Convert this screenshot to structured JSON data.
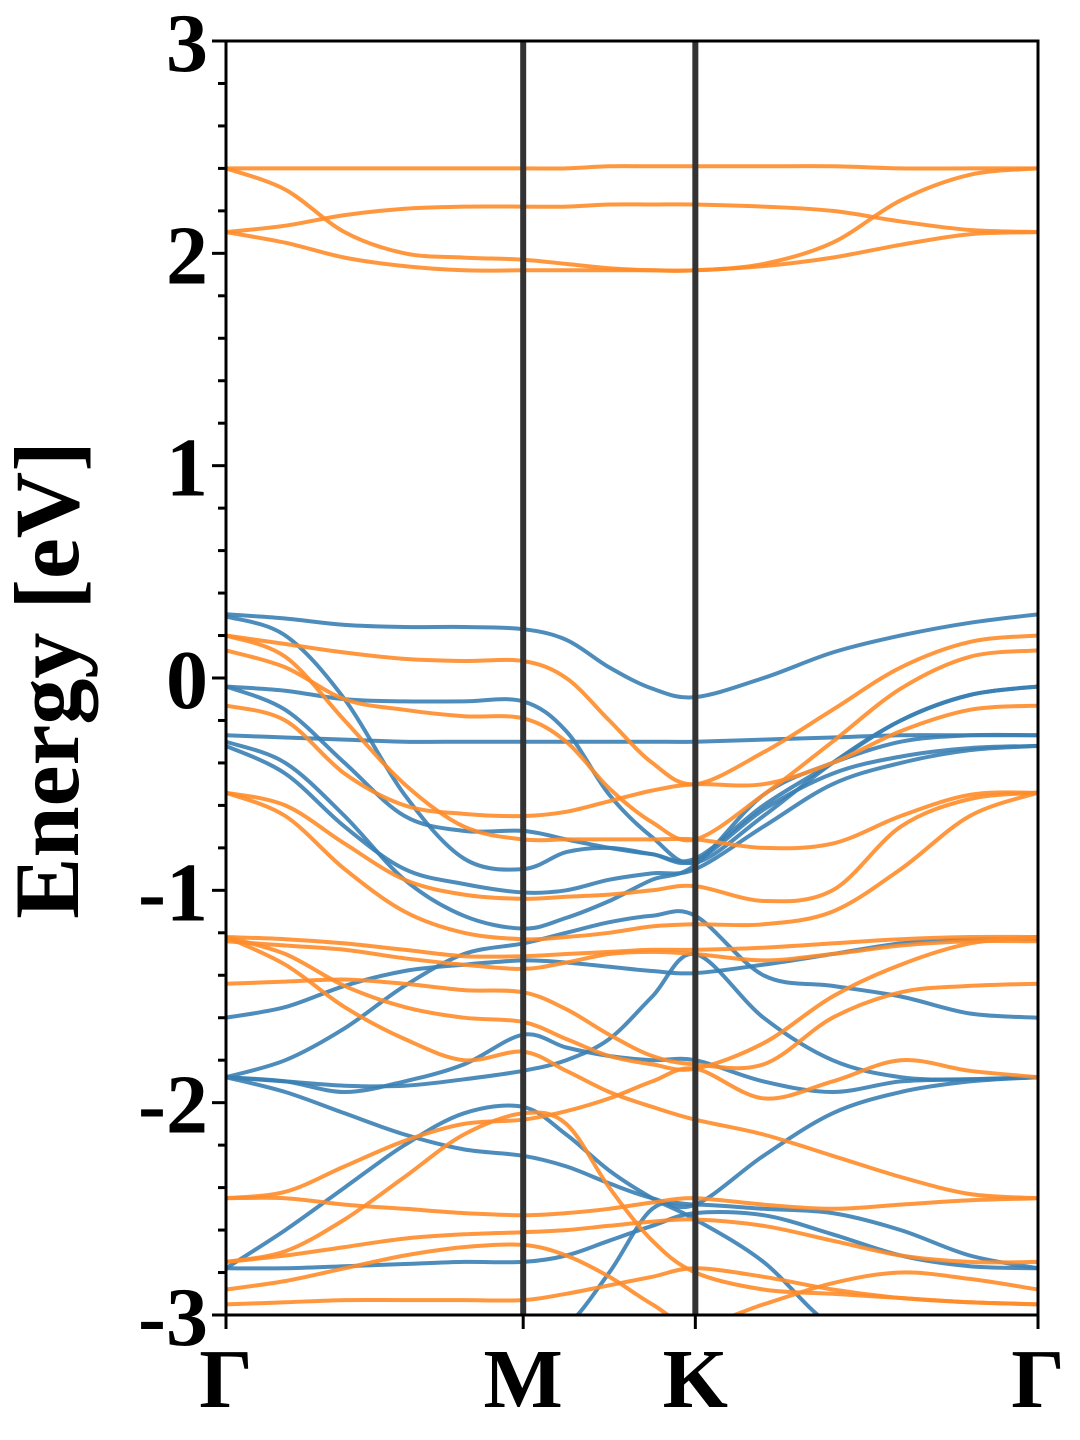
{
  "chart_data": {
    "type": "line",
    "title": "",
    "xlabel": "",
    "ylabel": "Energy [eV]",
    "ylim": [
      -3,
      3
    ],
    "y_ticks": [
      "-3",
      "-2",
      "-1",
      "0",
      "1",
      "2",
      "3"
    ],
    "x_ticks": [
      {
        "label": "Γ",
        "x": 0.0
      },
      {
        "label": "M",
        "x": 0.366
      },
      {
        "label": "K",
        "x": 0.578
      },
      {
        "label": "Γ",
        "x": 1.0
      }
    ],
    "grid": false,
    "legend": "none",
    "colors": {
      "blue_bands": "#3a7fb4",
      "orange_bands": "#ff8c2a",
      "high_symmetry_lines": "#333333"
    },
    "x_samples": [
      0.0,
      0.073,
      0.146,
      0.22,
      0.293,
      0.366,
      0.419,
      0.472,
      0.525,
      0.578,
      0.662,
      0.747,
      0.831,
      0.916,
      1.0
    ],
    "series": [
      {
        "color_key": "blue_bands",
        "values": [
          0.3,
          0.28,
          0.25,
          0.24,
          0.24,
          0.23,
          0.18,
          0.05,
          -0.05,
          -0.09,
          0.0,
          0.12,
          0.2,
          0.26,
          0.3
        ]
      },
      {
        "color_key": "blue_bands",
        "values": [
          -0.04,
          -0.06,
          -0.1,
          -0.11,
          -0.11,
          -0.11,
          -0.25,
          -0.55,
          -0.75,
          -0.87,
          -0.65,
          -0.4,
          -0.2,
          -0.08,
          -0.04
        ]
      },
      {
        "color_key": "blue_bands",
        "values": [
          -0.27,
          -0.28,
          -0.29,
          -0.3,
          -0.3,
          -0.3,
          -0.3,
          -0.3,
          -0.3,
          -0.3,
          -0.29,
          -0.28,
          -0.27,
          -0.27,
          -0.27
        ]
      },
      {
        "color_key": "blue_bands",
        "values": [
          -0.32,
          -0.45,
          -0.7,
          -0.9,
          -0.97,
          -1.01,
          -1.0,
          -0.95,
          -0.92,
          -0.9,
          -0.7,
          -0.5,
          -0.4,
          -0.34,
          -0.32
        ]
      },
      {
        "color_key": "blue_bands",
        "values": [
          0.29,
          0.2,
          -0.1,
          -0.55,
          -0.85,
          -0.9,
          -0.82,
          -0.8,
          -0.83,
          -0.86,
          -0.62,
          -0.45,
          -0.37,
          -0.33,
          -0.32
        ]
      },
      {
        "color_key": "blue_bands",
        "values": [
          -0.04,
          -0.15,
          -0.4,
          -0.65,
          -0.72,
          -0.72,
          -0.76,
          -0.8,
          -0.83,
          -0.85,
          -0.6,
          -0.4,
          -0.2,
          -0.08,
          -0.04
        ]
      },
      {
        "color_key": "blue_bands",
        "values": [
          -0.3,
          -0.4,
          -0.65,
          -0.95,
          -1.12,
          -1.18,
          -1.13,
          -1.05,
          -0.95,
          -0.88,
          -0.55,
          -0.4,
          -0.3,
          -0.27,
          -0.27
        ]
      },
      {
        "color_key": "blue_bands",
        "values": [
          -1.6,
          -1.55,
          -1.45,
          -1.38,
          -1.35,
          -1.33,
          -1.34,
          -1.36,
          -1.38,
          -1.39,
          -1.35,
          -1.3,
          -1.25,
          -1.23,
          -1.23
        ]
      },
      {
        "color_key": "blue_bands",
        "values": [
          -1.88,
          -1.8,
          -1.65,
          -1.45,
          -1.3,
          -1.25,
          -1.2,
          -1.15,
          -1.12,
          -1.12,
          -1.4,
          -1.45,
          -1.5,
          -1.58,
          -1.6
        ]
      },
      {
        "color_key": "blue_bands",
        "values": [
          -1.88,
          -1.9,
          -1.92,
          -1.92,
          -1.89,
          -1.85,
          -1.8,
          -1.7,
          -1.5,
          -1.3,
          -1.6,
          -1.8,
          -1.88,
          -1.89,
          -1.88
        ]
      },
      {
        "color_key": "blue_bands",
        "values": [
          -1.88,
          -1.9,
          -1.95,
          -1.9,
          -1.82,
          -1.68,
          -1.74,
          -1.78,
          -1.8,
          -1.8,
          -1.9,
          -1.95,
          -1.9,
          -1.89,
          -1.88
        ]
      },
      {
        "color_key": "blue_bands",
        "values": [
          -1.88,
          -1.95,
          -2.05,
          -2.15,
          -2.22,
          -2.25,
          -2.3,
          -2.38,
          -2.45,
          -2.48,
          -2.25,
          -2.05,
          -1.95,
          -1.9,
          -1.88
        ]
      },
      {
        "color_key": "blue_bands",
        "values": [
          -2.78,
          -2.78,
          -2.77,
          -2.76,
          -2.75,
          -2.75,
          -2.72,
          -2.65,
          -2.58,
          -2.52,
          -2.53,
          -2.62,
          -2.72,
          -2.77,
          -2.78
        ]
      },
      {
        "color_key": "blue_bands",
        "values": [
          -2.78,
          -2.6,
          -2.4,
          -2.2,
          -2.05,
          -2.02,
          -2.15,
          -2.32,
          -2.45,
          -2.55,
          -2.75,
          -3.05,
          -3.1,
          -3.1,
          -3.1
        ]
      },
      {
        "color_key": "blue_bands",
        "values": [
          -3.1,
          -3.1,
          -3.1,
          -3.1,
          -3.1,
          -3.1,
          -3.05,
          -2.8,
          -2.5,
          -2.48,
          -2.5,
          -2.52,
          -2.6,
          -2.72,
          -2.78
        ]
      },
      {
        "color_key": "orange_bands",
        "values": [
          2.4,
          2.4,
          2.4,
          2.4,
          2.4,
          2.4,
          2.4,
          2.41,
          2.41,
          2.41,
          2.41,
          2.41,
          2.4,
          2.4,
          2.4
        ]
      },
      {
        "color_key": "orange_bands",
        "values": [
          2.1,
          2.13,
          2.18,
          2.21,
          2.22,
          2.22,
          2.22,
          2.23,
          2.23,
          2.23,
          2.22,
          2.2,
          2.15,
          2.11,
          2.1
        ]
      },
      {
        "color_key": "orange_bands",
        "values": [
          2.4,
          2.3,
          2.1,
          2.0,
          1.98,
          1.97,
          1.95,
          1.93,
          1.92,
          1.92,
          1.95,
          2.05,
          2.25,
          2.37,
          2.4
        ]
      },
      {
        "color_key": "orange_bands",
        "values": [
          2.1,
          2.05,
          1.98,
          1.94,
          1.92,
          1.92,
          1.92,
          1.92,
          1.92,
          1.92,
          1.94,
          1.98,
          2.04,
          2.09,
          2.1
        ]
      },
      {
        "color_key": "orange_bands",
        "values": [
          0.2,
          0.16,
          0.12,
          0.09,
          0.08,
          0.08,
          0.0,
          -0.2,
          -0.4,
          -0.5,
          -0.35,
          -0.15,
          0.05,
          0.17,
          0.2
        ]
      },
      {
        "color_key": "orange_bands",
        "values": [
          0.13,
          0.05,
          -0.1,
          -0.15,
          -0.18,
          -0.19,
          -0.3,
          -0.52,
          -0.68,
          -0.76,
          -0.55,
          -0.3,
          -0.05,
          0.1,
          0.13
        ]
      },
      {
        "color_key": "orange_bands",
        "values": [
          -0.13,
          -0.2,
          -0.45,
          -0.6,
          -0.64,
          -0.65,
          -0.63,
          -0.58,
          -0.53,
          -0.5,
          -0.5,
          -0.4,
          -0.25,
          -0.15,
          -0.13
        ]
      },
      {
        "color_key": "orange_bands",
        "values": [
          0.2,
          0.1,
          -0.2,
          -0.5,
          -0.7,
          -0.76,
          -0.76,
          -0.76,
          -0.76,
          -0.76,
          -0.8,
          -0.78,
          -0.65,
          -0.55,
          -0.54
        ]
      },
      {
        "color_key": "orange_bands",
        "values": [
          -0.54,
          -0.6,
          -0.78,
          -0.95,
          -1.02,
          -1.04,
          -1.03,
          -1.02,
          -1.0,
          -0.98,
          -1.05,
          -1.0,
          -0.7,
          -0.57,
          -0.54
        ]
      },
      {
        "color_key": "orange_bands",
        "values": [
          -0.54,
          -0.65,
          -0.9,
          -1.1,
          -1.2,
          -1.23,
          -1.22,
          -1.2,
          -1.17,
          -1.16,
          -1.16,
          -1.1,
          -0.9,
          -0.65,
          -0.54
        ]
      },
      {
        "color_key": "orange_bands",
        "values": [
          -1.22,
          -1.23,
          -1.25,
          -1.28,
          -1.31,
          -1.31,
          -1.3,
          -1.29,
          -1.28,
          -1.28,
          -1.27,
          -1.25,
          -1.23,
          -1.22,
          -1.22
        ]
      },
      {
        "color_key": "orange_bands",
        "values": [
          -1.24,
          -1.26,
          -1.28,
          -1.32,
          -1.35,
          -1.37,
          -1.34,
          -1.3,
          -1.29,
          -1.3,
          -1.33,
          -1.3,
          -1.26,
          -1.24,
          -1.24
        ]
      },
      {
        "color_key": "orange_bands",
        "values": [
          -1.22,
          -1.3,
          -1.45,
          -1.55,
          -1.6,
          -1.62,
          -1.7,
          -1.78,
          -1.82,
          -1.84,
          -1.72,
          -1.5,
          -1.35,
          -1.25,
          -1.22
        ]
      },
      {
        "color_key": "orange_bands",
        "values": [
          -1.44,
          -1.43,
          -1.42,
          -1.44,
          -1.47,
          -1.48,
          -1.56,
          -1.68,
          -1.78,
          -1.82,
          -1.82,
          -1.6,
          -1.48,
          -1.45,
          -1.44
        ]
      },
      {
        "color_key": "orange_bands",
        "values": [
          -1.22,
          -1.35,
          -1.55,
          -1.7,
          -1.8,
          -1.76,
          -1.85,
          -1.95,
          -2.02,
          -2.08,
          -2.15,
          -2.25,
          -2.35,
          -2.43,
          -2.45
        ]
      },
      {
        "color_key": "orange_bands",
        "values": [
          -2.45,
          -2.42,
          -2.3,
          -2.18,
          -2.1,
          -2.08,
          -2.04,
          -1.98,
          -1.9,
          -1.84,
          -1.98,
          -1.9,
          -1.8,
          -1.85,
          -1.88
        ]
      },
      {
        "color_key": "orange_bands",
        "values": [
          -2.45,
          -2.45,
          -2.48,
          -2.5,
          -2.52,
          -2.53,
          -2.52,
          -2.5,
          -2.47,
          -2.45,
          -2.48,
          -2.5,
          -2.48,
          -2.46,
          -2.45
        ]
      },
      {
        "color_key": "orange_bands",
        "values": [
          -2.75,
          -2.72,
          -2.68,
          -2.64,
          -2.62,
          -2.61,
          -2.6,
          -2.58,
          -2.56,
          -2.55,
          -2.58,
          -2.65,
          -2.72,
          -2.75,
          -2.75
        ]
      },
      {
        "color_key": "orange_bands",
        "values": [
          -2.75,
          -2.7,
          -2.55,
          -2.35,
          -2.15,
          -2.05,
          -2.1,
          -2.4,
          -2.65,
          -2.8,
          -2.88,
          -2.9,
          -2.92,
          -2.94,
          -2.95
        ]
      },
      {
        "color_key": "orange_bands",
        "values": [
          -2.88,
          -2.84,
          -2.78,
          -2.72,
          -2.68,
          -2.67,
          -2.72,
          -2.82,
          -2.95,
          -3.05,
          -2.95,
          -2.85,
          -2.8,
          -2.83,
          -2.88
        ]
      },
      {
        "color_key": "orange_bands",
        "values": [
          -2.95,
          -2.94,
          -2.93,
          -2.93,
          -2.93,
          -2.93,
          -2.9,
          -2.86,
          -2.82,
          -2.78,
          -2.82,
          -2.88,
          -2.92,
          -2.94,
          -2.95
        ]
      }
    ]
  }
}
